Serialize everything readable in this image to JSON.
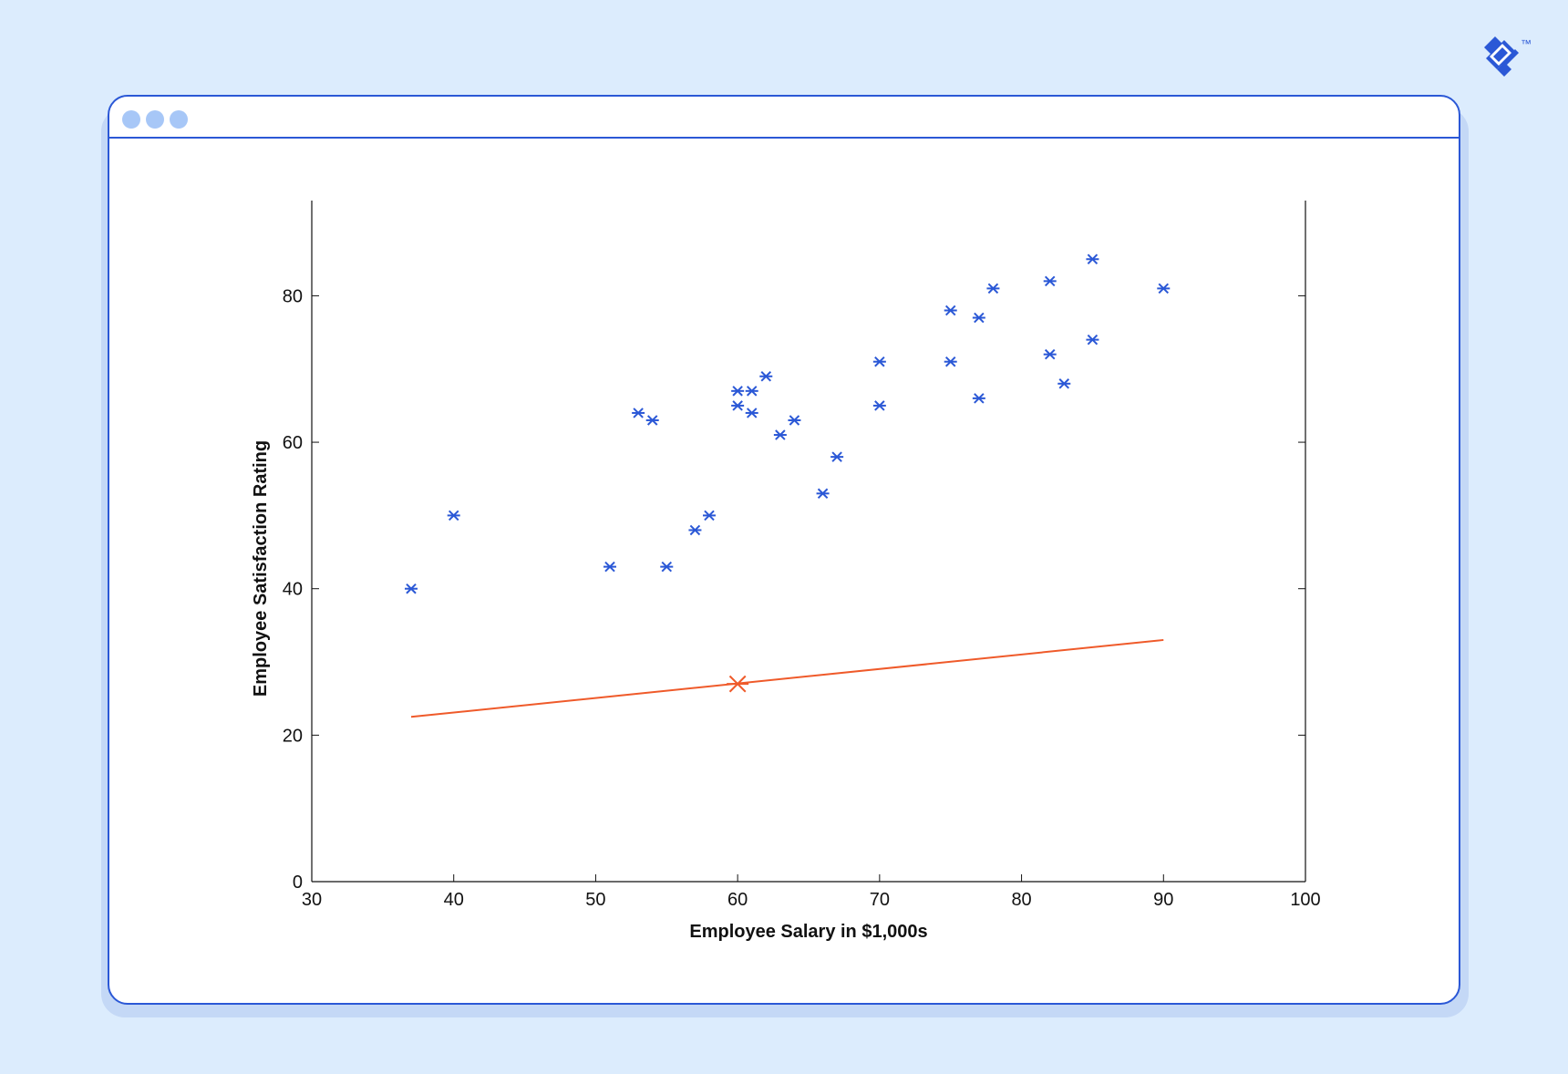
{
  "colors": {
    "background": "#dcecfd",
    "window_border": "#2b58d6",
    "window_dot": "#a7c7f7",
    "point_color": "#2b58d6",
    "line_color": "#ef5a2a",
    "brand": "#2b58d6"
  },
  "brand": {
    "logo_icon": "toptal-logo-icon",
    "trademark": "™"
  },
  "window": {
    "controls": [
      "dot",
      "dot",
      "dot"
    ]
  },
  "chart_data": {
    "type": "scatter",
    "title": "",
    "xlabel": "Employee Salary in $1,000s",
    "ylabel": "Employee Satisfaction Rating",
    "xlim": [
      30,
      100
    ],
    "ylim": [
      0,
      93
    ],
    "x_ticks": [
      30,
      40,
      50,
      60,
      70,
      80,
      90,
      100
    ],
    "y_ticks": [
      0,
      20,
      40,
      60,
      80
    ],
    "grid": false,
    "legend": "none",
    "points": [
      {
        "x": 37,
        "y": 40
      },
      {
        "x": 40,
        "y": 50
      },
      {
        "x": 51,
        "y": 43
      },
      {
        "x": 53,
        "y": 64
      },
      {
        "x": 54,
        "y": 63
      },
      {
        "x": 55,
        "y": 43
      },
      {
        "x": 57,
        "y": 48
      },
      {
        "x": 58,
        "y": 50
      },
      {
        "x": 60,
        "y": 67
      },
      {
        "x": 60,
        "y": 65
      },
      {
        "x": 61,
        "y": 67
      },
      {
        "x": 61,
        "y": 64
      },
      {
        "x": 62,
        "y": 69
      },
      {
        "x": 63,
        "y": 61
      },
      {
        "x": 64,
        "y": 63
      },
      {
        "x": 66,
        "y": 53
      },
      {
        "x": 67,
        "y": 58
      },
      {
        "x": 70,
        "y": 71
      },
      {
        "x": 70,
        "y": 65
      },
      {
        "x": 75,
        "y": 78
      },
      {
        "x": 75,
        "y": 71
      },
      {
        "x": 77,
        "y": 77
      },
      {
        "x": 77,
        "y": 66
      },
      {
        "x": 78,
        "y": 81
      },
      {
        "x": 82,
        "y": 82
      },
      {
        "x": 82,
        "y": 72
      },
      {
        "x": 83,
        "y": 68
      },
      {
        "x": 85,
        "y": 85
      },
      {
        "x": 85,
        "y": 74
      },
      {
        "x": 90,
        "y": 81
      }
    ],
    "fit_line": {
      "x": [
        37,
        90
      ],
      "y": [
        22.5,
        33
      ]
    },
    "highlight_point": {
      "x": 60,
      "y": 27
    }
  }
}
